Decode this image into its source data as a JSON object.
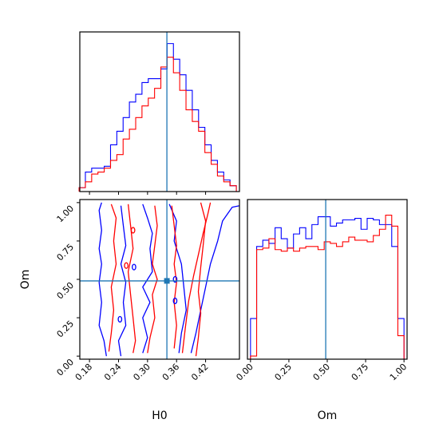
{
  "chart_data": {
    "type": "corner",
    "parameters": [
      "H0",
      "Om"
    ],
    "truths": {
      "H0": 0.34,
      "Om": 0.49
    },
    "colors": {
      "series_a": "#0000ff",
      "series_b": "#ff0000",
      "truth": "#1f77b4"
    },
    "axes": {
      "H0": {
        "label": "H0",
        "range": [
          0.16,
          0.49
        ],
        "ticks": [
          "0.18",
          "0.24",
          "0.30",
          "0.36",
          "0.42"
        ],
        "tick_values": [
          0.18,
          0.24,
          0.3,
          0.36,
          0.42
        ]
      },
      "Om": {
        "label": "Om",
        "range": [
          -0.02,
          1.02
        ],
        "ticks": [
          "0.00",
          "0.25",
          "0.50",
          "0.75",
          "1.00"
        ],
        "tick_values": [
          0.0,
          0.25,
          0.5,
          0.75,
          1.0
        ]
      }
    },
    "hist_H0": {
      "x": [
        0.165,
        0.178,
        0.191,
        0.204,
        0.217,
        0.23,
        0.243,
        0.256,
        0.269,
        0.282,
        0.295,
        0.308,
        0.321,
        0.334,
        0.347,
        0.36,
        0.373,
        0.386,
        0.399,
        0.412,
        0.425,
        0.438,
        0.451,
        0.464,
        0.477
      ],
      "series": [
        {
          "color_key": "series_a",
          "values": [
            0.2,
            1,
            1.2,
            1.2,
            1.3,
            2.4,
            3.1,
            3.8,
            4.6,
            5,
            5.6,
            5.8,
            5.8,
            6.3,
            7.6,
            6.8,
            6,
            5.2,
            4.2,
            3.3,
            2.4,
            1.6,
            1,
            0.6,
            0.3
          ]
        },
        {
          "color_key": "series_b",
          "values": [
            0.2,
            0.5,
            0.9,
            1,
            1.2,
            1.6,
            1.9,
            2.7,
            3.2,
            3.8,
            4.4,
            4.8,
            5.3,
            6.4,
            6.9,
            6.1,
            5.2,
            4.2,
            3.6,
            3.1,
            2,
            1.4,
            0.8,
            0.5,
            0.3
          ]
        }
      ]
    },
    "hist_Om": {
      "x": [
        0.02,
        0.06,
        0.1,
        0.14,
        0.18,
        0.22,
        0.26,
        0.3,
        0.34,
        0.38,
        0.42,
        0.46,
        0.5,
        0.54,
        0.58,
        0.62,
        0.66,
        0.7,
        0.74,
        0.78,
        0.82,
        0.86,
        0.9,
        0.94,
        0.98
      ],
      "series": [
        {
          "color_key": "series_a",
          "values": [
            2.6,
            7.2,
            7.6,
            7.4,
            8.4,
            7.7,
            7.1,
            8,
            8.4,
            7.7,
            8.6,
            9.1,
            9.1,
            8.5,
            8.7,
            8.9,
            8.9,
            9,
            8.3,
            9,
            8.9,
            8.6,
            8.6,
            7.2,
            2.6
          ]
        },
        {
          "color_key": "series_b",
          "values": [
            0.2,
            7,
            7.1,
            7.7,
            7,
            6.9,
            7.1,
            6.9,
            7.1,
            7.2,
            7.2,
            7,
            7.5,
            7.4,
            7.2,
            7.5,
            7.8,
            7.6,
            7.6,
            7.5,
            7.9,
            8.3,
            9.2,
            8.5,
            1.5
          ]
        }
      ]
    },
    "contours": [
      {
        "color_key": "series_a",
        "points": [
          [
            0.215,
            0.0
          ],
          [
            0.21,
            0.1
          ],
          [
            0.2,
            0.2
          ],
          [
            0.205,
            0.35
          ],
          [
            0.2,
            0.48
          ],
          [
            0.205,
            0.6
          ],
          [
            0.2,
            0.7
          ],
          [
            0.205,
            0.82
          ],
          [
            0.2,
            0.95
          ],
          [
            0.205,
            1.0
          ]
        ]
      },
      {
        "color_key": "series_a",
        "points": [
          [
            0.245,
            0.98
          ],
          [
            0.25,
            0.85
          ],
          [
            0.255,
            0.72
          ],
          [
            0.245,
            0.6
          ],
          [
            0.255,
            0.48
          ],
          [
            0.25,
            0.35
          ],
          [
            0.255,
            0.2
          ],
          [
            0.24,
            0.1
          ],
          [
            0.245,
            0.0
          ]
        ]
      },
      {
        "color_key": "series_a",
        "points": [
          [
            0.29,
            0.99
          ],
          [
            0.3,
            0.9
          ],
          [
            0.31,
            0.8
          ],
          [
            0.305,
            0.7
          ],
          [
            0.31,
            0.55
          ],
          [
            0.29,
            0.45
          ],
          [
            0.305,
            0.35
          ],
          [
            0.29,
            0.25
          ],
          [
            0.3,
            0.12
          ],
          [
            0.29,
            0.02
          ]
        ]
      },
      {
        "color_key": "series_a",
        "points": [
          [
            0.39,
            0.02
          ],
          [
            0.4,
            0.15
          ],
          [
            0.41,
            0.3
          ],
          [
            0.42,
            0.45
          ],
          [
            0.43,
            0.6
          ],
          [
            0.445,
            0.75
          ],
          [
            0.455,
            0.88
          ],
          [
            0.475,
            0.97
          ],
          [
            0.49,
            0.98
          ]
        ]
      },
      {
        "color_key": "series_a",
        "points": [
          [
            0.365,
            0.02
          ],
          [
            0.37,
            0.15
          ],
          [
            0.38,
            0.3
          ],
          [
            0.375,
            0.45
          ],
          [
            0.37,
            0.6
          ],
          [
            0.355,
            0.75
          ],
          [
            0.36,
            0.88
          ],
          [
            0.345,
            0.99
          ]
        ]
      },
      {
        "color_key": "series_b",
        "points": [
          [
            0.22,
            0.03
          ],
          [
            0.225,
            0.15
          ],
          [
            0.23,
            0.3
          ],
          [
            0.225,
            0.45
          ],
          [
            0.235,
            0.6
          ],
          [
            0.23,
            0.75
          ],
          [
            0.235,
            0.9
          ],
          [
            0.225,
            0.99
          ]
        ]
      },
      {
        "color_key": "series_b",
        "points": [
          [
            0.26,
            0.99
          ],
          [
            0.265,
            0.85
          ],
          [
            0.27,
            0.7
          ],
          [
            0.26,
            0.55
          ],
          [
            0.265,
            0.4
          ],
          [
            0.27,
            0.25
          ],
          [
            0.275,
            0.1
          ],
          [
            0.27,
            0.02
          ]
        ]
      },
      {
        "color_key": "series_b",
        "points": [
          [
            0.3,
            0.02
          ],
          [
            0.305,
            0.12
          ],
          [
            0.315,
            0.25
          ],
          [
            0.31,
            0.4
          ],
          [
            0.32,
            0.5
          ],
          [
            0.31,
            0.6
          ],
          [
            0.315,
            0.72
          ],
          [
            0.32,
            0.85
          ],
          [
            0.315,
            0.98
          ]
        ]
      },
      {
        "color_key": "series_b",
        "points": [
          [
            0.35,
            0.98
          ],
          [
            0.355,
            0.85
          ],
          [
            0.36,
            0.72
          ],
          [
            0.355,
            0.6
          ],
          [
            0.36,
            0.48
          ],
          [
            0.355,
            0.35
          ],
          [
            0.36,
            0.2
          ],
          [
            0.355,
            0.05
          ]
        ]
      },
      {
        "color_key": "series_b",
        "points": [
          [
            0.4,
            0.0
          ],
          [
            0.405,
            0.12
          ],
          [
            0.41,
            0.28
          ],
          [
            0.405,
            0.42
          ],
          [
            0.41,
            0.58
          ],
          [
            0.415,
            0.72
          ],
          [
            0.42,
            0.88
          ],
          [
            0.41,
            1.0
          ]
        ]
      },
      {
        "color_key": "series_b",
        "points": [
          [
            0.372,
            0.02
          ],
          [
            0.378,
            0.18
          ],
          [
            0.385,
            0.36
          ],
          [
            0.395,
            0.52
          ],
          [
            0.405,
            0.66
          ],
          [
            0.415,
            0.8
          ],
          [
            0.425,
            0.93
          ],
          [
            0.43,
            1.0
          ]
        ]
      }
    ],
    "small_loops": [
      {
        "color_key": "series_b",
        "x": 0.256,
        "y": 0.59
      },
      {
        "color_key": "series_b",
        "x": 0.27,
        "y": 0.82
      },
      {
        "color_key": "series_a",
        "x": 0.272,
        "y": 0.58
      },
      {
        "color_key": "series_a",
        "x": 0.243,
        "y": 0.24
      },
      {
        "color_key": "series_a",
        "x": 0.357,
        "y": 0.5
      },
      {
        "color_key": "series_a",
        "x": 0.357,
        "y": 0.36
      }
    ]
  }
}
